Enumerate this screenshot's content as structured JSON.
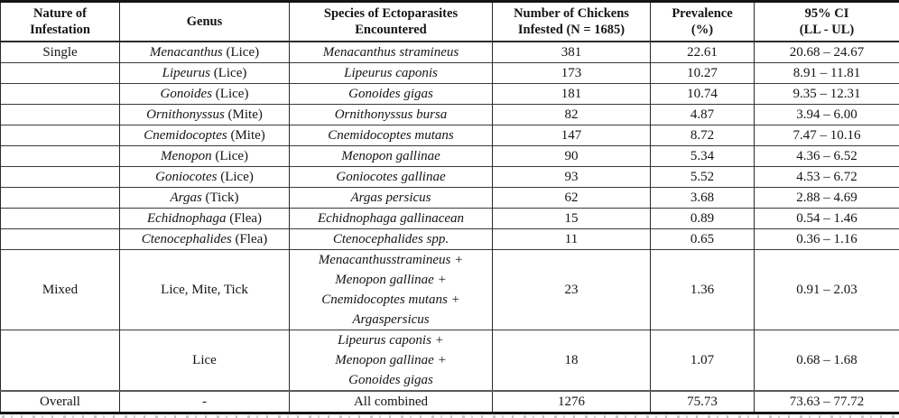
{
  "page": {
    "background_color": "#ffffff",
    "text_color": "#141414",
    "border_color": "#2a2a2a"
  },
  "table": {
    "columns": [
      {
        "id": "nature",
        "header_lines": [
          "Nature of",
          "Infestation"
        ]
      },
      {
        "id": "genus",
        "header_lines": [
          "Genus"
        ]
      },
      {
        "id": "species",
        "header_lines": [
          "Species of Ectoparasites",
          "Encountered"
        ]
      },
      {
        "id": "count",
        "header_lines": [
          "Number of Chickens",
          "Infested (N = 1685)"
        ]
      },
      {
        "id": "prevalence",
        "header_lines": [
          "Prevalence",
          "(%)"
        ]
      },
      {
        "id": "ci",
        "header_lines": [
          "95% CI",
          "(LL - UL)"
        ]
      }
    ],
    "rows": [
      {
        "nature": "Single",
        "genus_it": "Menacanthus",
        "genus_rm": "(Lice)",
        "species": [
          "Menacanthus stramineus"
        ],
        "count": "381",
        "prevalence": "22.61",
        "ci": "20.68 – 24.67"
      },
      {
        "nature": "",
        "genus_it": "Lipeurus",
        "genus_rm": "(Lice)",
        "species": [
          "Lipeurus caponis"
        ],
        "count": "173",
        "prevalence": "10.27",
        "ci": "8.91 – 11.81"
      },
      {
        "nature": "",
        "genus_it": "Gonoides",
        "genus_rm": "(Lice)",
        "species": [
          "Gonoides gigas"
        ],
        "count": "181",
        "prevalence": "10.74",
        "ci": "9.35 – 12.31"
      },
      {
        "nature": "",
        "genus_it": "Ornithonyssus",
        "genus_rm": "(Mite)",
        "species": [
          "Ornithonyssus bursa"
        ],
        "count": "82",
        "prevalence": "4.87",
        "ci": "3.94 – 6.00"
      },
      {
        "nature": "",
        "genus_it": "Cnemidocoptes",
        "genus_rm": "(Mite)",
        "species": [
          "Cnemidocoptes mutans"
        ],
        "count": "147",
        "prevalence": "8.72",
        "ci": "7.47 – 10.16"
      },
      {
        "nature": "",
        "genus_it": "Menopon",
        "genus_rm": "(Lice)",
        "species": [
          "Menopon gallinae"
        ],
        "count": "90",
        "prevalence": "5.34",
        "ci": "4.36 – 6.52"
      },
      {
        "nature": "",
        "genus_it": "Goniocotes",
        "genus_rm": "(Lice)",
        "species": [
          "Goniocotes gallinae"
        ],
        "count": "93",
        "prevalence": "5.52",
        "ci": "4.53 – 6.72"
      },
      {
        "nature": "",
        "genus_it": "Argas",
        "genus_rm": "(Tick)",
        "species": [
          "Argas persicus"
        ],
        "count": "62",
        "prevalence": "3.68",
        "ci": "2.88 – 4.69"
      },
      {
        "nature": "",
        "genus_it": "Echidnophaga",
        "genus_rm": "(Flea)",
        "species": [
          "Echidnophaga gallinacean"
        ],
        "count": "15",
        "prevalence": "0.89",
        "ci": "0.54 – 1.46"
      },
      {
        "nature": "",
        "genus_it": "Ctenocephalides",
        "genus_rm": "(Flea)",
        "species": [
          "Ctenocephalides spp."
        ],
        "count": "11",
        "prevalence": "0.65",
        "ci": "0.36 – 1.16"
      },
      {
        "nature": "Mixed",
        "genus_it": "",
        "genus_rm": "Lice, Mite, Tick",
        "species": [
          "Menacanthusstramineus +",
          "Menopon gallinae +",
          "Cnemidocoptes mutans +",
          "Argaspersicus"
        ],
        "count": "23",
        "prevalence": "1.36",
        "ci": "0.91 – 2.03"
      },
      {
        "nature": "",
        "genus_it": "",
        "genus_rm": "Lice",
        "species": [
          "Lipeurus caponis +",
          "Menopon gallinae +",
          "Gonoides gigas"
        ],
        "count": "18",
        "prevalence": "1.07",
        "ci": "0.68 – 1.68"
      },
      {
        "nature": "Overall",
        "genus_it": "",
        "genus_rm": "-",
        "species": [
          "All combined"
        ],
        "count": "1276",
        "prevalence": "75.73",
        "ci": "73.63 – 77.72"
      }
    ]
  }
}
